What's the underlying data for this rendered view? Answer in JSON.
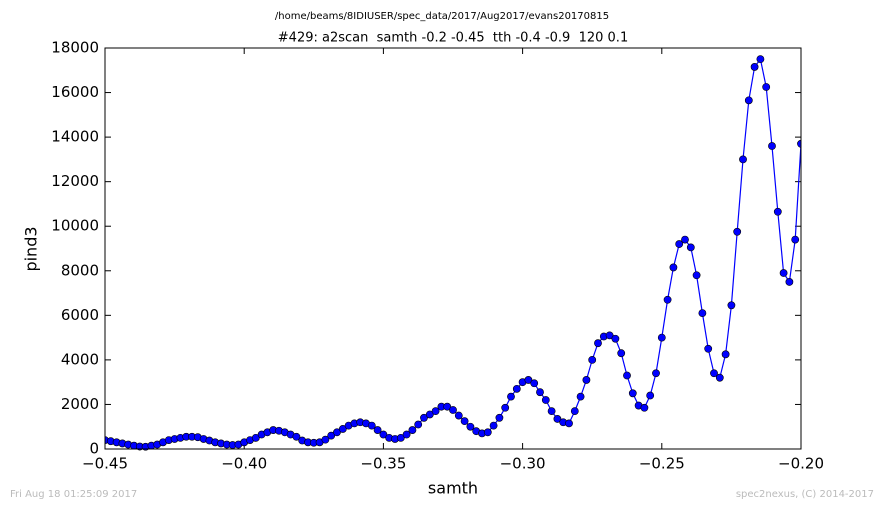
{
  "chart_data": {
    "type": "line",
    "suptitle": "/home/beams/8IDIUSER/spec_data/2017/Aug2017/evans20170815",
    "title": "#429: a2scan  samth -0.2 -0.45  tth -0.4 -0.9  120 0.1",
    "xlabel": "samth",
    "ylabel": "pind3",
    "footer_left": "Fri Aug 18 01:25:09 2017",
    "footer_right": "spec2nexus, (C) 2014-2017",
    "xlim": [
      -0.45,
      -0.2
    ],
    "ylim": [
      0,
      18000
    ],
    "xticks": [
      {
        "value": -0.45,
        "label": "−0.45"
      },
      {
        "value": -0.4,
        "label": "−0.40"
      },
      {
        "value": -0.35,
        "label": "−0.35"
      },
      {
        "value": -0.3,
        "label": "−0.30"
      },
      {
        "value": -0.25,
        "label": "−0.25"
      },
      {
        "value": -0.2,
        "label": "−0.20"
      }
    ],
    "yticks": [
      0,
      2000,
      4000,
      6000,
      8000,
      10000,
      12000,
      14000,
      16000,
      18000
    ],
    "grid": false,
    "x": [
      -0.45,
      -0.44792,
      -0.44583,
      -0.44375,
      -0.44167,
      -0.43958,
      -0.4375,
      -0.43542,
      -0.43333,
      -0.43125,
      -0.42917,
      -0.42708,
      -0.425,
      -0.42292,
      -0.42083,
      -0.41875,
      -0.41667,
      -0.41458,
      -0.4125,
      -0.41042,
      -0.40833,
      -0.40625,
      -0.40417,
      -0.40208,
      -0.4,
      -0.39792,
      -0.39583,
      -0.39375,
      -0.39167,
      -0.38958,
      -0.3875,
      -0.38542,
      -0.38333,
      -0.38125,
      -0.37917,
      -0.37708,
      -0.375,
      -0.37292,
      -0.37083,
      -0.36875,
      -0.36667,
      -0.36458,
      -0.3625,
      -0.36042,
      -0.35833,
      -0.35625,
      -0.35417,
      -0.35208,
      -0.35,
      -0.34792,
      -0.34583,
      -0.34375,
      -0.34167,
      -0.33958,
      -0.3375,
      -0.33542,
      -0.33333,
      -0.33125,
      -0.32917,
      -0.32708,
      -0.325,
      -0.32292,
      -0.32083,
      -0.31875,
      -0.31667,
      -0.31458,
      -0.3125,
      -0.31042,
      -0.30833,
      -0.30625,
      -0.30417,
      -0.30208,
      -0.3,
      -0.29792,
      -0.29583,
      -0.29375,
      -0.29167,
      -0.28958,
      -0.2875,
      -0.28542,
      -0.28333,
      -0.28125,
      -0.27917,
      -0.27708,
      -0.275,
      -0.27292,
      -0.27083,
      -0.26875,
      -0.26667,
      -0.26458,
      -0.2625,
      -0.26042,
      -0.25833,
      -0.25625,
      -0.25417,
      -0.25208,
      -0.25,
      -0.24792,
      -0.24583,
      -0.24375,
      -0.24167,
      -0.23958,
      -0.2375,
      -0.23542,
      -0.23333,
      -0.23125,
      -0.22917,
      -0.22708,
      -0.225,
      -0.22292,
      -0.22083,
      -0.21875,
      -0.21667,
      -0.21458,
      -0.2125,
      -0.21042,
      -0.20833,
      -0.20625,
      -0.20417,
      -0.20208,
      -0.2
    ],
    "series": [
      {
        "color": "#0000ff",
        "values": [
          400,
          350,
          300,
          250,
          200,
          150,
          110,
          100,
          150,
          200,
          300,
          400,
          450,
          500,
          550,
          550,
          530,
          450,
          380,
          300,
          250,
          200,
          180,
          200,
          300,
          400,
          500,
          650,
          750,
          850,
          820,
          750,
          650,
          550,
          380,
          300,
          280,
          300,
          420,
          600,
          750,
          900,
          1050,
          1150,
          1200,
          1150,
          1050,
          850,
          650,
          500,
          450,
          500,
          650,
          850,
          1100,
          1400,
          1550,
          1700,
          1900,
          1900,
          1750,
          1500,
          1250,
          1000,
          800,
          700,
          750,
          1050,
          1400,
          1850,
          2350,
          2700,
          3000,
          3100,
          2950,
          2550,
          2200,
          1700,
          1350,
          1200,
          1150,
          1700,
          2350,
          3100,
          4000,
          4750,
          5050,
          5100,
          4950,
          4300,
          3300,
          2500,
          1950,
          1850,
          2400,
          3400,
          5000,
          6700,
          8150,
          9200,
          9400,
          9050,
          7800,
          6100,
          4500,
          3400,
          3200,
          4250,
          6450,
          9750,
          13000,
          15650,
          17150,
          17500,
          16250,
          13600,
          10650,
          7900,
          7500,
          9400,
          13700
        ]
      }
    ]
  }
}
